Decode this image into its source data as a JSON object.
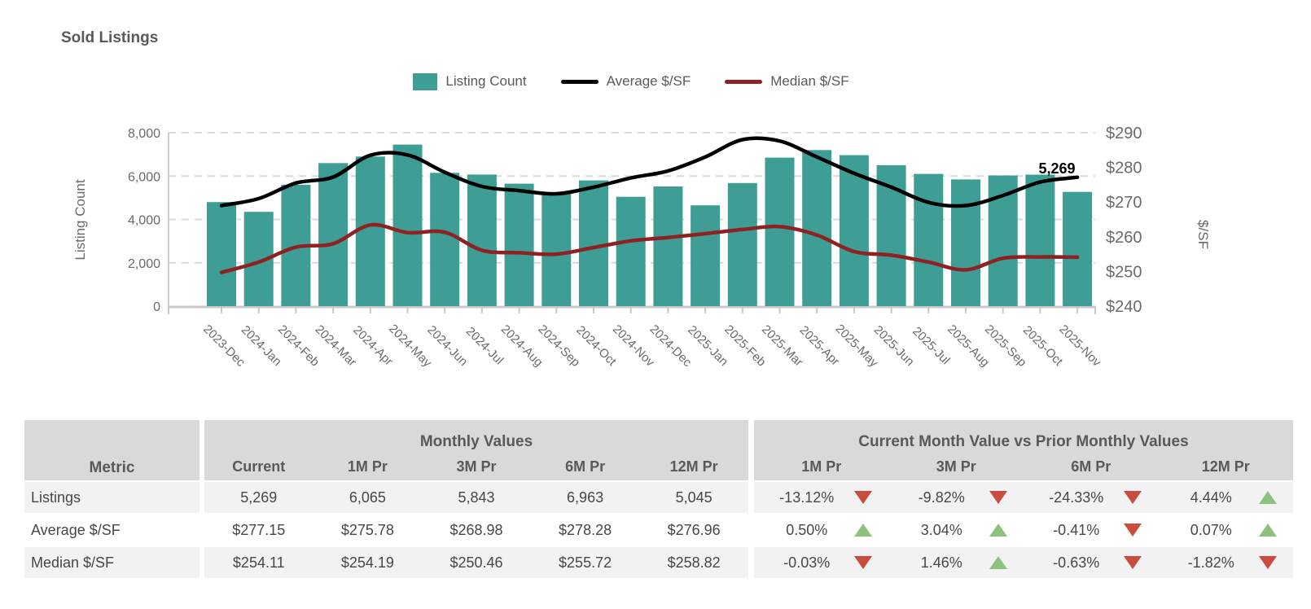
{
  "chart": {
    "title": "Sold Listings",
    "legend": [
      {
        "label": "Listing Count",
        "type": "bar",
        "color": "#3E9E96"
      },
      {
        "label": "Average $/SF",
        "type": "line",
        "color": "#000000"
      },
      {
        "label": "Median $/SF",
        "type": "line",
        "color": "#8E2222"
      }
    ],
    "left_axis": {
      "title": "Listing Count",
      "ticks": [
        "8,000",
        "6,000",
        "4,000",
        "2,000",
        "0"
      ]
    },
    "right_axis": {
      "title": "$/SF",
      "ticks": [
        "$290",
        "$280",
        "$270",
        "$260",
        "$250",
        "$240"
      ]
    },
    "end_label": "5,269"
  },
  "chart_data": {
    "type": "bar",
    "subtype": "combo bar+line, dual axis",
    "title": "Sold Listings",
    "categories": [
      "2023-Dec",
      "2024-Jan",
      "2024-Feb",
      "2024-Mar",
      "2024-Apr",
      "2024-May",
      "2024-Jun",
      "2024-Jul",
      "2024-Aug",
      "2024-Sep",
      "2024-Oct",
      "2024-Nov",
      "2024-Dec",
      "2025-Jan",
      "2025-Feb",
      "2025-Mar",
      "2025-Apr",
      "2025-May",
      "2025-Jun",
      "2025-Jul",
      "2025-Aug",
      "2025-Sep",
      "2025-Oct",
      "2025-Nov"
    ],
    "series": [
      {
        "name": "Listing Count",
        "type": "bar",
        "axis": "left",
        "color": "#3E9E96",
        "values": [
          4800,
          4350,
          5600,
          6600,
          6900,
          7450,
          6150,
          6070,
          5650,
          5200,
          5800,
          5045,
          5520,
          4650,
          5680,
          6850,
          7200,
          6963,
          6500,
          6100,
          5843,
          6030,
          6065,
          5269
        ]
      },
      {
        "name": "Average $/SF",
        "type": "line",
        "axis": "right",
        "color": "#000000",
        "values": [
          269.0,
          271.0,
          275.5,
          277.2,
          283.5,
          283.6,
          278.6,
          274.5,
          273.3,
          272.4,
          274.3,
          276.96,
          279.0,
          283.0,
          288.0,
          287.6,
          283.0,
          278.28,
          274.3,
          269.9,
          268.98,
          271.9,
          275.78,
          277.15
        ]
      },
      {
        "name": "Median $/SF",
        "type": "line",
        "axis": "right",
        "color": "#8E2222",
        "values": [
          249.7,
          252.7,
          257.0,
          258.0,
          263.4,
          261.2,
          261.3,
          256.1,
          255.4,
          255.0,
          256.9,
          258.82,
          259.8,
          260.9,
          262.1,
          262.9,
          260.5,
          255.72,
          254.7,
          252.7,
          250.46,
          253.8,
          254.19,
          254.11
        ]
      }
    ],
    "ylabel_left": "Listing Count",
    "ylabel_right": "$/SF",
    "left_ylim": [
      0,
      8000
    ],
    "right_ylim": [
      240,
      290
    ],
    "grid": "horizontal dashed",
    "legend_position": "top-center",
    "annotation": {
      "text": "5,269",
      "series": "Listing Count",
      "category": "2025-Nov"
    }
  },
  "table": {
    "metric_header": "Metric",
    "groups": [
      {
        "label": "Monthly Values",
        "columns": [
          "Current",
          "1M Pr",
          "3M Pr",
          "6M Pr",
          "12M Pr"
        ]
      },
      {
        "label": "Current Month Value vs Prior Monthly Values",
        "columns": [
          "1M Pr",
          "3M Pr",
          "6M Pr",
          "12M Pr"
        ]
      }
    ],
    "rows": [
      {
        "metric": "Listings",
        "values": [
          "5,269",
          "6,065",
          "5,843",
          "6,963",
          "5,045"
        ],
        "changes": [
          {
            "value": "-13.12%",
            "dir": "down"
          },
          {
            "value": "-9.82%",
            "dir": "down"
          },
          {
            "value": "-24.33%",
            "dir": "down"
          },
          {
            "value": "4.44%",
            "dir": "up"
          }
        ]
      },
      {
        "metric": "Average $/SF",
        "values": [
          "$277.15",
          "$275.78",
          "$268.98",
          "$278.28",
          "$276.96"
        ],
        "changes": [
          {
            "value": "0.50%",
            "dir": "up"
          },
          {
            "value": "3.04%",
            "dir": "up"
          },
          {
            "value": "-0.41%",
            "dir": "down"
          },
          {
            "value": "0.07%",
            "dir": "up"
          }
        ]
      },
      {
        "metric": "Median $/SF",
        "values": [
          "$254.11",
          "$254.19",
          "$250.46",
          "$255.72",
          "$258.82"
        ],
        "changes": [
          {
            "value": "-0.03%",
            "dir": "down"
          },
          {
            "value": "1.46%",
            "dir": "up"
          },
          {
            "value": "-0.63%",
            "dir": "down"
          },
          {
            "value": "-1.82%",
            "dir": "down"
          }
        ]
      }
    ],
    "colors": {
      "up": "#8CC27E",
      "down": "#C94D3E",
      "header_bg": "#D9D9D9",
      "stripe_bg": "#F2F2F2"
    }
  }
}
